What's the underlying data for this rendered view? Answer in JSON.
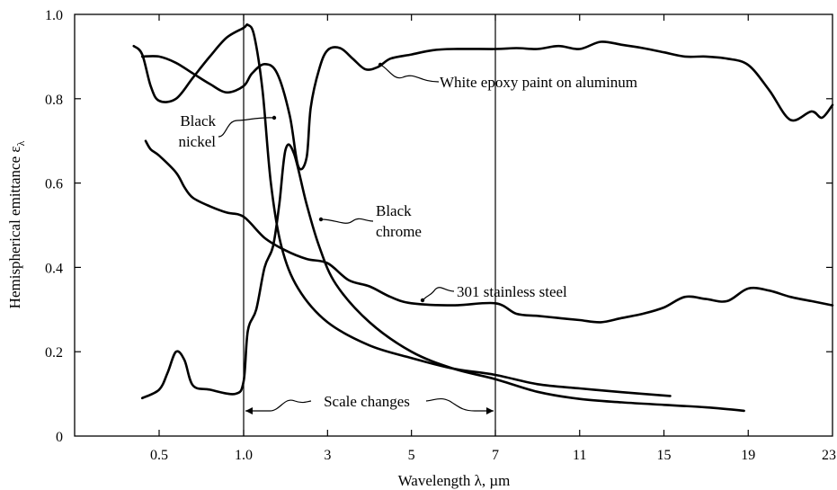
{
  "chart_data": {
    "type": "line",
    "title": "",
    "xlabel": "Wavelength λ, µm",
    "ylabel": "Hemispherical emittance ε",
    "ylabel_subscript": "λ",
    "x_ticks": [
      "0.5",
      "1.0",
      "3",
      "5",
      "7",
      "11",
      "15",
      "19",
      "23"
    ],
    "y_ticks": [
      "0",
      "0.2",
      "0.4",
      "0.6",
      "0.8",
      "1.0"
    ],
    "ylim": [
      0,
      1.0
    ],
    "x_scale": "piecewise: linear 0.3–1.0 µm, linear 1.0–7 µm, linear 7–23 µm",
    "scale_breaks": [
      1.0,
      7
    ],
    "scale_note": "Scale changes",
    "grid": false,
    "series": [
      {
        "name": "White epoxy paint on aluminum",
        "points": [
          [
            0.4,
            0.9
          ],
          [
            0.5,
            0.9
          ],
          [
            0.6,
            0.885
          ],
          [
            0.7,
            0.86
          ],
          [
            0.8,
            0.835
          ],
          [
            0.9,
            0.815
          ],
          [
            1.0,
            0.83
          ],
          [
            1.2,
            0.86
          ],
          [
            1.5,
            0.882
          ],
          [
            1.8,
            0.86
          ],
          [
            2.1,
            0.76
          ],
          [
            2.3,
            0.64
          ],
          [
            2.5,
            0.66
          ],
          [
            2.6,
            0.78
          ],
          [
            2.8,
            0.87
          ],
          [
            3.0,
            0.915
          ],
          [
            3.3,
            0.92
          ],
          [
            3.6,
            0.895
          ],
          [
            3.9,
            0.87
          ],
          [
            4.2,
            0.875
          ],
          [
            4.5,
            0.895
          ],
          [
            5.0,
            0.905
          ],
          [
            5.5,
            0.915
          ],
          [
            6.0,
            0.918
          ],
          [
            7.0,
            0.918
          ],
          [
            8.0,
            0.92
          ],
          [
            9.0,
            0.918
          ],
          [
            10.0,
            0.925
          ],
          [
            11.0,
            0.918
          ],
          [
            12.0,
            0.935
          ],
          [
            13.0,
            0.928
          ],
          [
            14.0,
            0.92
          ],
          [
            15.0,
            0.91
          ],
          [
            16.0,
            0.9
          ],
          [
            17.0,
            0.9
          ],
          [
            18.0,
            0.895
          ],
          [
            19.0,
            0.88
          ],
          [
            20.0,
            0.82
          ],
          [
            21.0,
            0.75
          ],
          [
            22.0,
            0.77
          ],
          [
            22.5,
            0.755
          ],
          [
            23.0,
            0.785
          ]
        ]
      },
      {
        "name": "Black nickel",
        "points": [
          [
            0.35,
            0.925
          ],
          [
            0.4,
            0.905
          ],
          [
            0.45,
            0.83
          ],
          [
            0.5,
            0.795
          ],
          [
            0.6,
            0.8
          ],
          [
            0.7,
            0.85
          ],
          [
            0.8,
            0.9
          ],
          [
            0.9,
            0.945
          ],
          [
            1.0,
            0.968
          ],
          [
            1.1,
            0.975
          ],
          [
            1.25,
            0.95
          ],
          [
            1.45,
            0.82
          ],
          [
            1.65,
            0.6
          ],
          [
            1.9,
            0.45
          ],
          [
            2.3,
            0.35
          ],
          [
            3.0,
            0.27
          ],
          [
            4.0,
            0.215
          ],
          [
            5.0,
            0.185
          ],
          [
            6.0,
            0.16
          ],
          [
            7.0,
            0.145
          ],
          [
            9.0,
            0.123
          ],
          [
            11.0,
            0.113
          ],
          [
            13.0,
            0.104
          ],
          [
            15.3,
            0.095
          ]
        ]
      },
      {
        "name": "Black chrome",
        "points": [
          [
            0.4,
            0.09
          ],
          [
            0.5,
            0.11
          ],
          [
            0.55,
            0.15
          ],
          [
            0.6,
            0.2
          ],
          [
            0.65,
            0.18
          ],
          [
            0.7,
            0.12
          ],
          [
            0.8,
            0.11
          ],
          [
            0.95,
            0.1
          ],
          [
            1.0,
            0.13
          ],
          [
            1.1,
            0.25
          ],
          [
            1.3,
            0.3
          ],
          [
            1.5,
            0.4
          ],
          [
            1.7,
            0.45
          ],
          [
            1.85,
            0.55
          ],
          [
            2.0,
            0.68
          ],
          [
            2.2,
            0.67
          ],
          [
            2.5,
            0.55
          ],
          [
            2.8,
            0.45
          ],
          [
            3.2,
            0.36
          ],
          [
            4.0,
            0.27
          ],
          [
            5.0,
            0.2
          ],
          [
            6.0,
            0.16
          ],
          [
            7.0,
            0.135
          ],
          [
            9.0,
            0.105
          ],
          [
            11.0,
            0.088
          ],
          [
            13.0,
            0.08
          ],
          [
            15.0,
            0.074
          ],
          [
            17.0,
            0.068
          ],
          [
            18.8,
            0.06
          ]
        ]
      },
      {
        "name": "301 stainless steel",
        "points": [
          [
            0.42,
            0.7
          ],
          [
            0.45,
            0.68
          ],
          [
            0.5,
            0.665
          ],
          [
            0.6,
            0.625
          ],
          [
            0.65,
            0.59
          ],
          [
            0.7,
            0.565
          ],
          [
            0.8,
            0.545
          ],
          [
            0.9,
            0.53
          ],
          [
            1.0,
            0.52
          ],
          [
            1.5,
            0.47
          ],
          [
            2.0,
            0.44
          ],
          [
            2.5,
            0.42
          ],
          [
            3.0,
            0.41
          ],
          [
            3.5,
            0.37
          ],
          [
            4.0,
            0.355
          ],
          [
            4.5,
            0.33
          ],
          [
            5.0,
            0.315
          ],
          [
            6.0,
            0.31
          ],
          [
            7.0,
            0.315
          ],
          [
            8.0,
            0.29
          ],
          [
            9.0,
            0.285
          ],
          [
            10.0,
            0.28
          ],
          [
            11.0,
            0.275
          ],
          [
            12.0,
            0.27
          ],
          [
            13.0,
            0.28
          ],
          [
            14.0,
            0.29
          ],
          [
            15.0,
            0.305
          ],
          [
            16.0,
            0.33
          ],
          [
            17.0,
            0.325
          ],
          [
            18.0,
            0.32
          ],
          [
            19.0,
            0.35
          ],
          [
            20.0,
            0.345
          ],
          [
            21.0,
            0.33
          ],
          [
            22.0,
            0.32
          ],
          [
            23.0,
            0.31
          ]
        ]
      }
    ],
    "annotations": [
      {
        "id": "white-epoxy",
        "lines": [
          "White epoxy paint on aluminum"
        ]
      },
      {
        "id": "black-nickel",
        "lines": [
          "Black",
          "nickel"
        ]
      },
      {
        "id": "black-chrome",
        "lines": [
          "Black",
          "chrome"
        ]
      },
      {
        "id": "stainless",
        "lines": [
          "301 stainless steel"
        ]
      },
      {
        "id": "scale-changes",
        "lines": [
          "Scale changes"
        ]
      }
    ]
  }
}
